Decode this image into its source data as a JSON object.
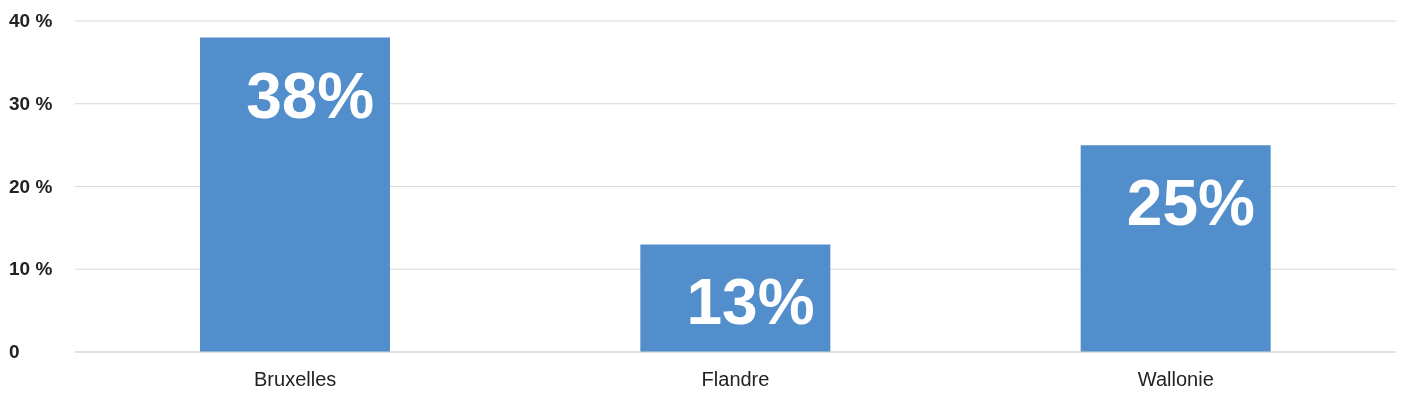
{
  "chart_data": {
    "type": "bar",
    "categories": [
      "Bruxelles",
      "Flandre",
      "Wallonie"
    ],
    "series": [
      {
        "color": "#518ecb",
        "values": [
          38,
          13,
          25
        ],
        "value_labels": [
          "38%",
          "13%",
          "25%"
        ]
      }
    ],
    "ylim": [
      0,
      40
    ],
    "yticks": [
      {
        "value": 0,
        "label": "0"
      },
      {
        "value": 10,
        "label": "10 %"
      },
      {
        "value": 20,
        "label": "20 %"
      },
      {
        "value": 30,
        "label": "30 %"
      },
      {
        "value": 40,
        "label": "40 %"
      }
    ],
    "grid": "y",
    "legend": false
  }
}
